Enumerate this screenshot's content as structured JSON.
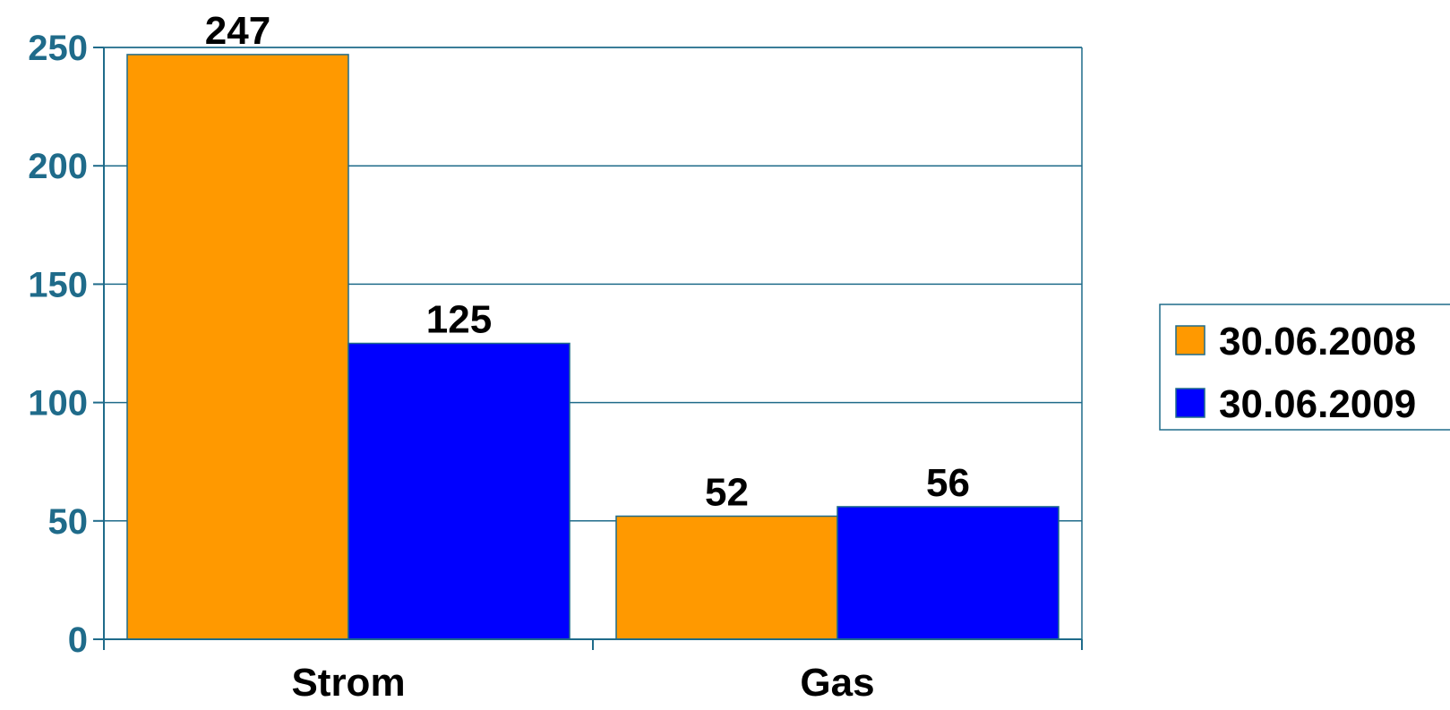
{
  "chart_data": {
    "type": "bar",
    "categories": [
      "Strom",
      "Gas"
    ],
    "series": [
      {
        "name": "30.06.2008",
        "color": "#ff9900",
        "values": [
          247,
          52
        ]
      },
      {
        "name": "30.06.2009",
        "color": "#0000ff",
        "values": [
          125,
          56
        ]
      }
    ],
    "ylim": [
      0,
      250
    ],
    "yticks": [
      0,
      50,
      100,
      150,
      200,
      250
    ],
    "title": "",
    "xlabel": "",
    "ylabel": "",
    "grid": true,
    "legend_position": "right",
    "axis_color": "#1f6b8a",
    "tick_label_color": "#1f6b8a"
  }
}
